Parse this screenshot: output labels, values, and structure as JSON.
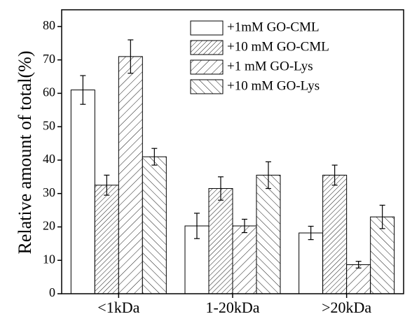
{
  "chart_data": {
    "type": "bar",
    "y_label": "Relative amount of total(%)",
    "categories": [
      "<1kDa",
      "1-20kDa",
      ">20kDa"
    ],
    "series": [
      {
        "name": "+1mM GO-CML",
        "color": "#000000",
        "hatch": "none",
        "values": [
          61,
          20.3,
          18.2
        ],
        "errors": [
          4.3,
          3.8,
          2
        ]
      },
      {
        "name": "+10 mM GO-CML",
        "color": "#000000",
        "hatch": "dense-forward",
        "values": [
          32.5,
          31.5,
          35.5
        ],
        "errors": [
          3,
          3.5,
          3
        ]
      },
      {
        "name": "+1 mM GO-Lys",
        "color": "#000000",
        "hatch": "forward",
        "values": [
          71,
          20.3,
          8.7
        ],
        "errors": [
          5,
          2,
          1
        ]
      },
      {
        "name": "+10 mM GO-Lys",
        "color": "#000000",
        "hatch": "backward",
        "values": [
          41,
          35.5,
          23
        ],
        "errors": [
          2.5,
          4,
          3.5
        ]
      }
    ],
    "ylim": [
      0,
      85
    ],
    "yticks": [
      0,
      10,
      20,
      30,
      40,
      50,
      60,
      70,
      80
    ],
    "legend": "top-right"
  }
}
